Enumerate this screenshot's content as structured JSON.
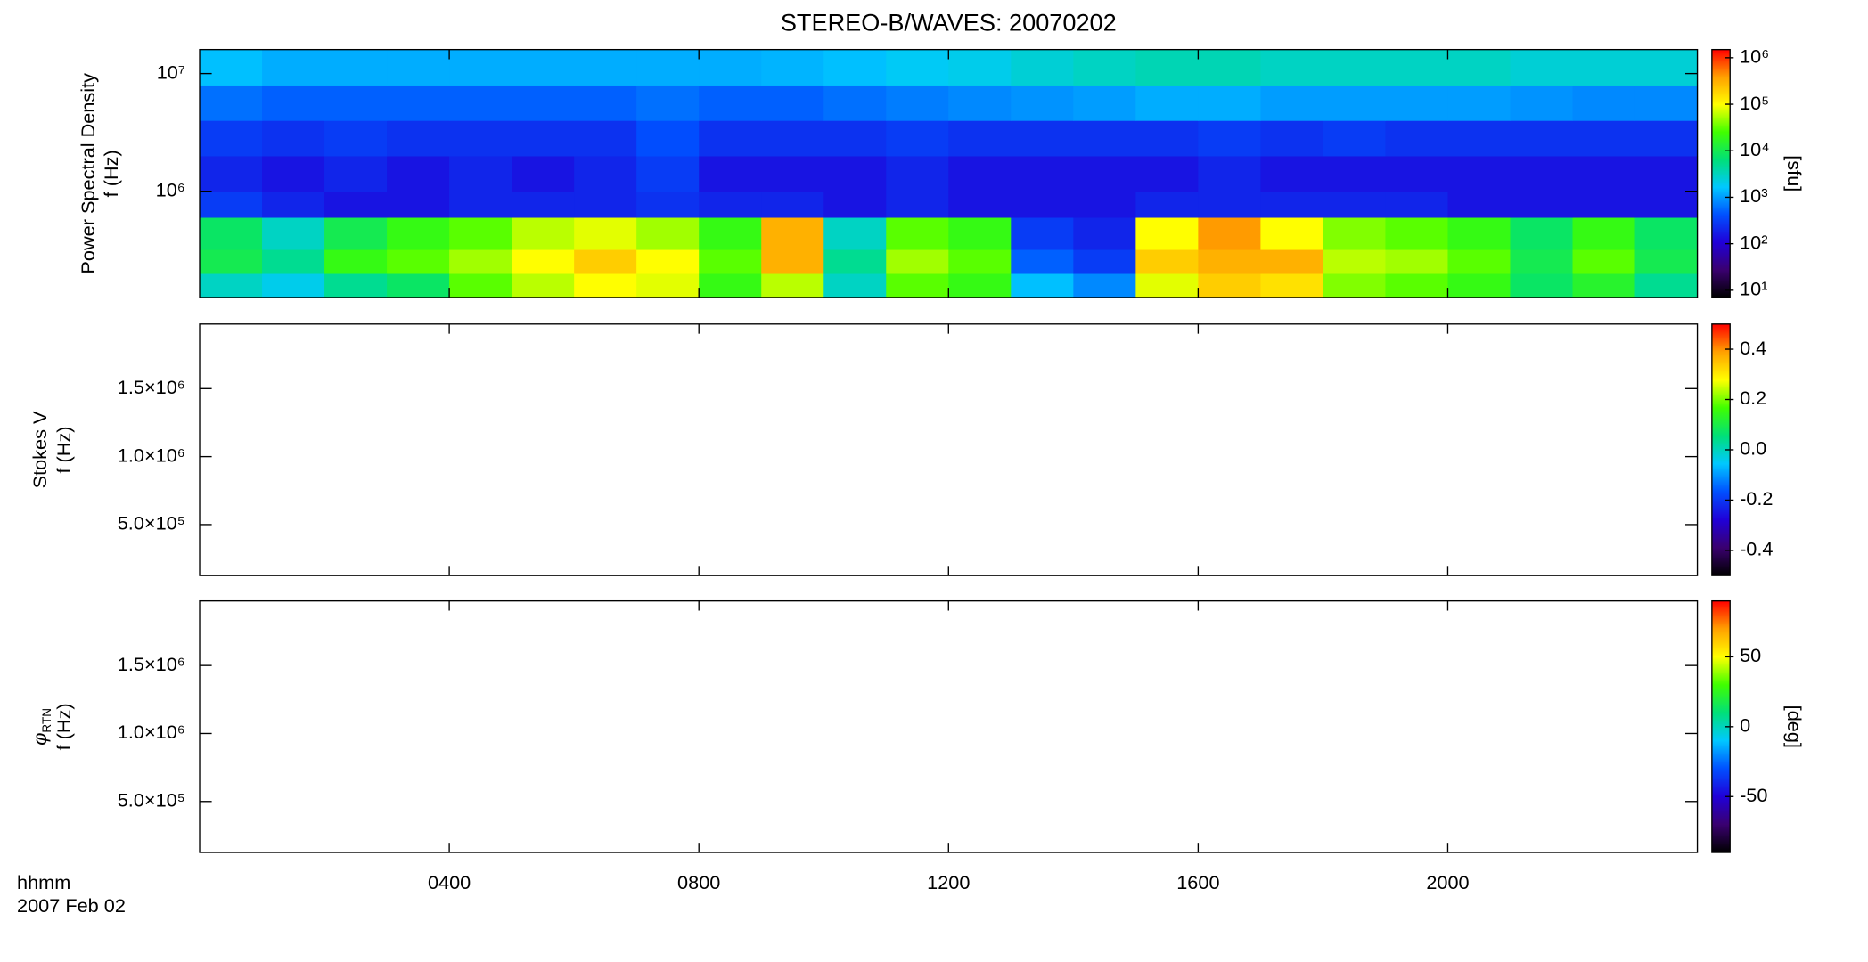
{
  "title": "STEREO-B/WAVES: 20070202",
  "x_axis": {
    "xlim": [
      0,
      24
    ],
    "xticks": [
      {
        "value": 4,
        "label": "0400"
      },
      {
        "value": 8,
        "label": "0800"
      },
      {
        "value": 12,
        "label": "1200"
      },
      {
        "value": 16,
        "label": "1600"
      },
      {
        "value": 20,
        "label": "2000"
      }
    ],
    "labels": [
      "hhmm",
      "2007 Feb 02"
    ]
  },
  "chart_data": [
    {
      "type": "heatmap",
      "ylabel": "Power Spectral Density",
      "ylabel2": "f (Hz)",
      "ylog": true,
      "ylim": [
        125000,
        16000000
      ],
      "yticks": [
        {
          "value": 1000000,
          "label": "10⁶"
        },
        {
          "value": 10000000,
          "label": "10⁷"
        }
      ],
      "x_bins": [
        0,
        1,
        2,
        3,
        4,
        5,
        6,
        7,
        8,
        9,
        10,
        11,
        12,
        13,
        14,
        15,
        16,
        17,
        18,
        19,
        20,
        21,
        22,
        23,
        24
      ],
      "y_bins": [
        125000,
        200000,
        320000,
        600000,
        1000000,
        2000000,
        4000000,
        8000000,
        16000000
      ],
      "values": [
        [
          3000,
          2000,
          5000,
          8000,
          30000,
          60000,
          100000,
          80000,
          20000,
          60000,
          3000,
          30000,
          20000,
          1500,
          800,
          80000,
          200000,
          150000,
          40000,
          30000,
          20000,
          8000,
          15000,
          5000
        ],
        [
          10000,
          5000,
          20000,
          30000,
          50000,
          100000,
          200000,
          100000,
          30000,
          300000,
          5000,
          50000,
          30000,
          500,
          300,
          200000,
          300000,
          300000,
          60000,
          50000,
          30000,
          10000,
          30000,
          10000
        ],
        [
          8000,
          3000,
          10000,
          20000,
          30000,
          60000,
          80000,
          50000,
          20000,
          300000,
          3000,
          30000,
          20000,
          300,
          200,
          100000,
          400000,
          100000,
          40000,
          30000,
          20000,
          8000,
          20000,
          8000
        ],
        [
          300,
          200,
          150,
          150,
          200,
          200,
          200,
          250,
          200,
          200,
          150,
          200,
          150,
          150,
          150,
          200,
          200,
          200,
          200,
          200,
          150,
          150,
          150,
          150
        ],
        [
          200,
          150,
          200,
          150,
          200,
          150,
          200,
          300,
          150,
          150,
          150,
          200,
          150,
          150,
          150,
          150,
          200,
          150,
          150,
          150,
          150,
          150,
          150,
          150
        ],
        [
          300,
          250,
          300,
          250,
          250,
          250,
          250,
          400,
          250,
          250,
          250,
          300,
          250,
          250,
          250,
          250,
          300,
          250,
          300,
          250,
          250,
          250,
          250,
          250
        ],
        [
          600,
          500,
          500,
          500,
          500,
          500,
          500,
          600,
          500,
          500,
          600,
          700,
          800,
          900,
          1000,
          1200,
          1200,
          1000,
          1000,
          1000,
          1000,
          900,
          800,
          800
        ],
        [
          1500,
          1200,
          1200,
          1200,
          1200,
          1200,
          1200,
          1200,
          1200,
          1300,
          1500,
          1800,
          2000,
          2500,
          3000,
          3500,
          3500,
          3000,
          3000,
          3000,
          3000,
          2500,
          2500,
          2500
        ]
      ],
      "zlog": true,
      "zlim": [
        7,
        1500000
      ],
      "zticks": [
        {
          "value": 10,
          "label": "10¹"
        },
        {
          "value": 100,
          "label": "10²"
        },
        {
          "value": 1000,
          "label": "10³"
        },
        {
          "value": 10000,
          "label": "10⁴"
        },
        {
          "value": 100000,
          "label": "10⁵"
        },
        {
          "value": 1000000,
          "label": "10⁶"
        }
      ],
      "zlabel": "[sfu]",
      "colormap": [
        "#000000",
        "#3a0070",
        "#2000d8",
        "#0050ff",
        "#00c8ff",
        "#00e078",
        "#40ff00",
        "#ffff00",
        "#ffa000",
        "#ff0000"
      ]
    },
    {
      "type": "heatmap",
      "ylabel": "Stokes V",
      "ylabel2": "f (Hz)",
      "ylog": false,
      "ylim": [
        125000,
        1975000
      ],
      "yticks": [
        {
          "value": 500000,
          "label": "5.0×10⁵"
        },
        {
          "value": 1000000,
          "label": "1.0×10⁶"
        },
        {
          "value": 1500000,
          "label": "1.5×10⁶"
        }
      ],
      "zlog": false,
      "zlim": [
        -0.5,
        0.5
      ],
      "zticks": [
        -0.4,
        -0.2,
        {
          "value": 0,
          "label": "0.0"
        },
        0.2,
        0.4
      ],
      "colormap": [
        "#000000",
        "#3a0070",
        "#2000d8",
        "#0050ff",
        "#00c8ff",
        "#00e078",
        "#40ff00",
        "#ffff00",
        "#ffa000",
        "#ff0000"
      ]
    },
    {
      "type": "heatmap",
      "ylabel": "φ",
      "ylabel_sub": "RTN",
      "ylabel2": "f (Hz)",
      "ylog": false,
      "ylim": [
        125000,
        1975000
      ],
      "yticks": [
        {
          "value": 500000,
          "label": "5.0×10⁵"
        },
        {
          "value": 1000000,
          "label": "1.0×10⁶"
        },
        {
          "value": 1500000,
          "label": "1.5×10⁶"
        }
      ],
      "zlog": false,
      "zlim": [
        -90,
        90
      ],
      "zticks": [
        -50,
        0,
        50
      ],
      "zlabel": "[deg]",
      "colormap": [
        "#000000",
        "#3a0070",
        "#2000d8",
        "#0050ff",
        "#00c8ff",
        "#00e078",
        "#40ff00",
        "#ffff00",
        "#ffa000",
        "#ff0000"
      ]
    }
  ]
}
